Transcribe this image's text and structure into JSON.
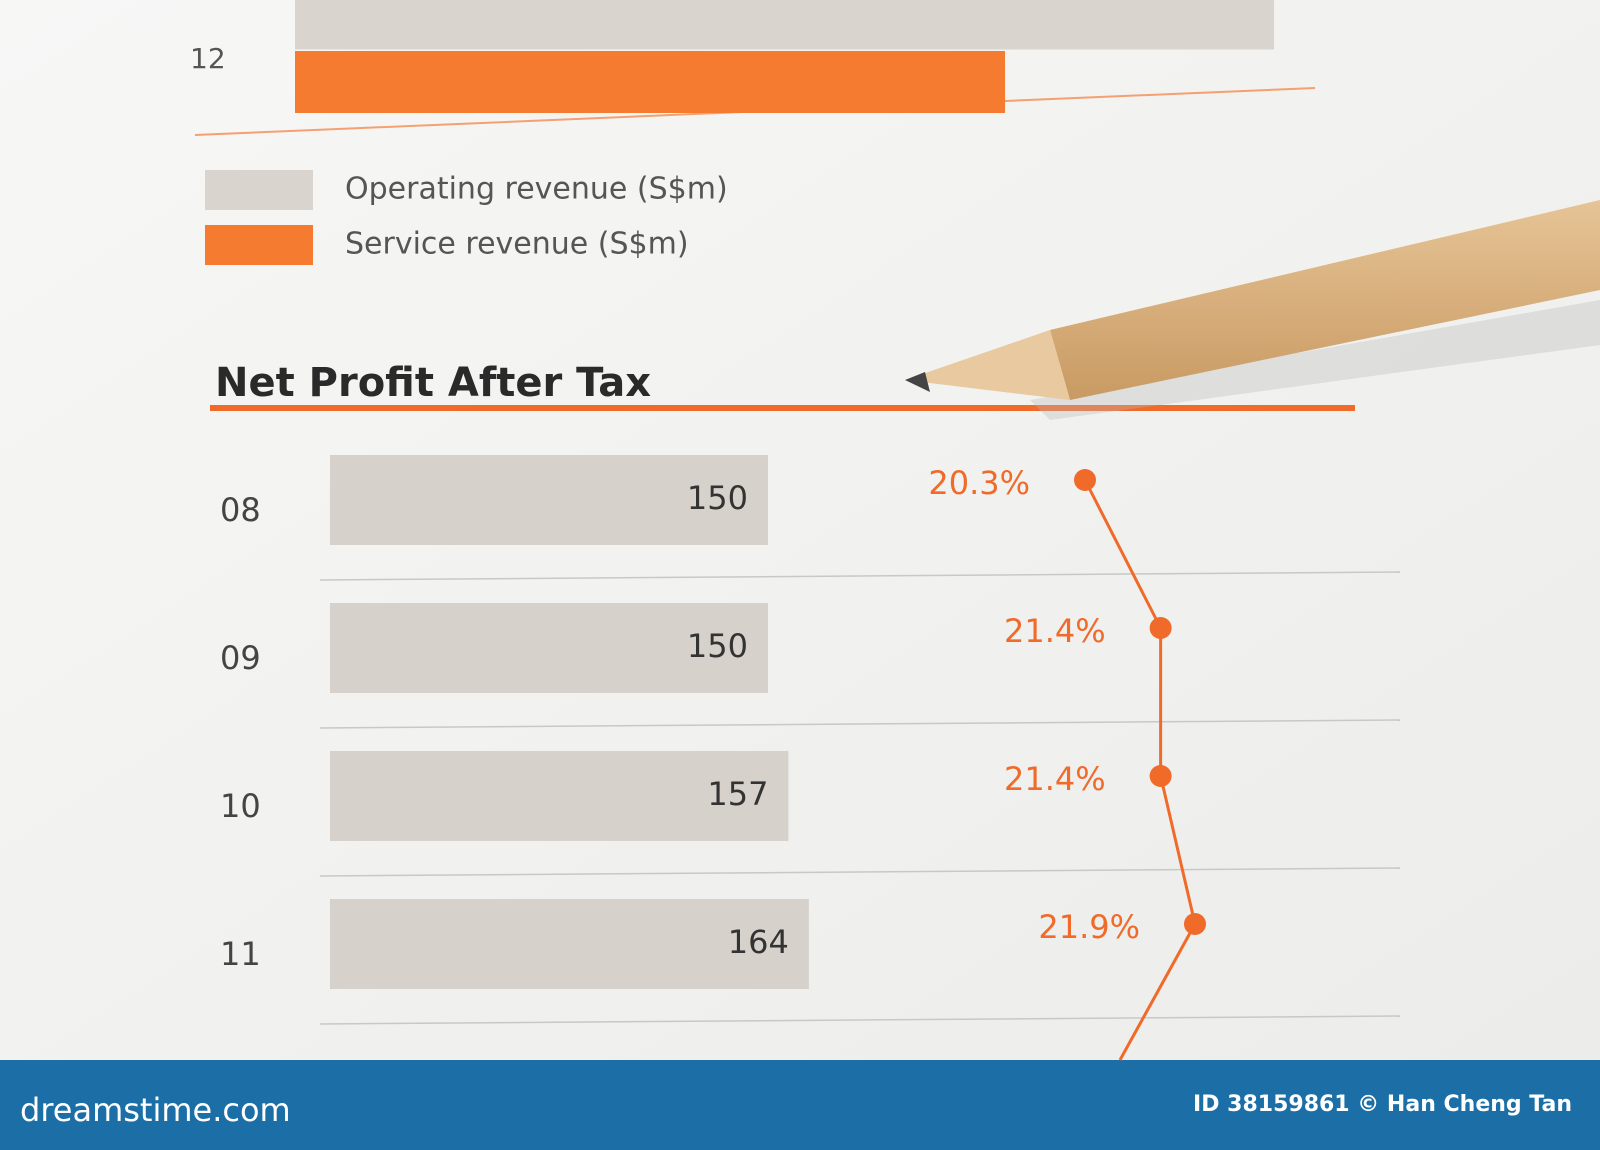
{
  "chart_data": [
    {
      "type": "bar",
      "categories": [
        "12"
      ],
      "series": [
        {
          "name": "Operating revenue (S$m)",
          "color": "#d9d5ce",
          "values": [
            1070
          ]
        },
        {
          "name": "Service revenue (S$m)",
          "color": "#f47b30",
          "values": [
            776
          ]
        }
      ]
    },
    {
      "type": "bar",
      "title": "Net Profit After Tax",
      "categories": [
        "08",
        "09",
        "10",
        "11"
      ],
      "values": [
        150,
        150,
        157,
        164
      ],
      "color": "#d6d2cb",
      "line": {
        "color": "#f06a2a",
        "values": [
          20.3,
          21.4,
          21.4,
          21.9
        ],
        "value_labels": [
          "20.3%",
          "21.4%",
          "21.4%",
          "21.9%"
        ]
      }
    }
  ],
  "footer": {
    "site": "dreamstime.com",
    "credit": "ID 38159861 © Han Cheng Tan"
  }
}
